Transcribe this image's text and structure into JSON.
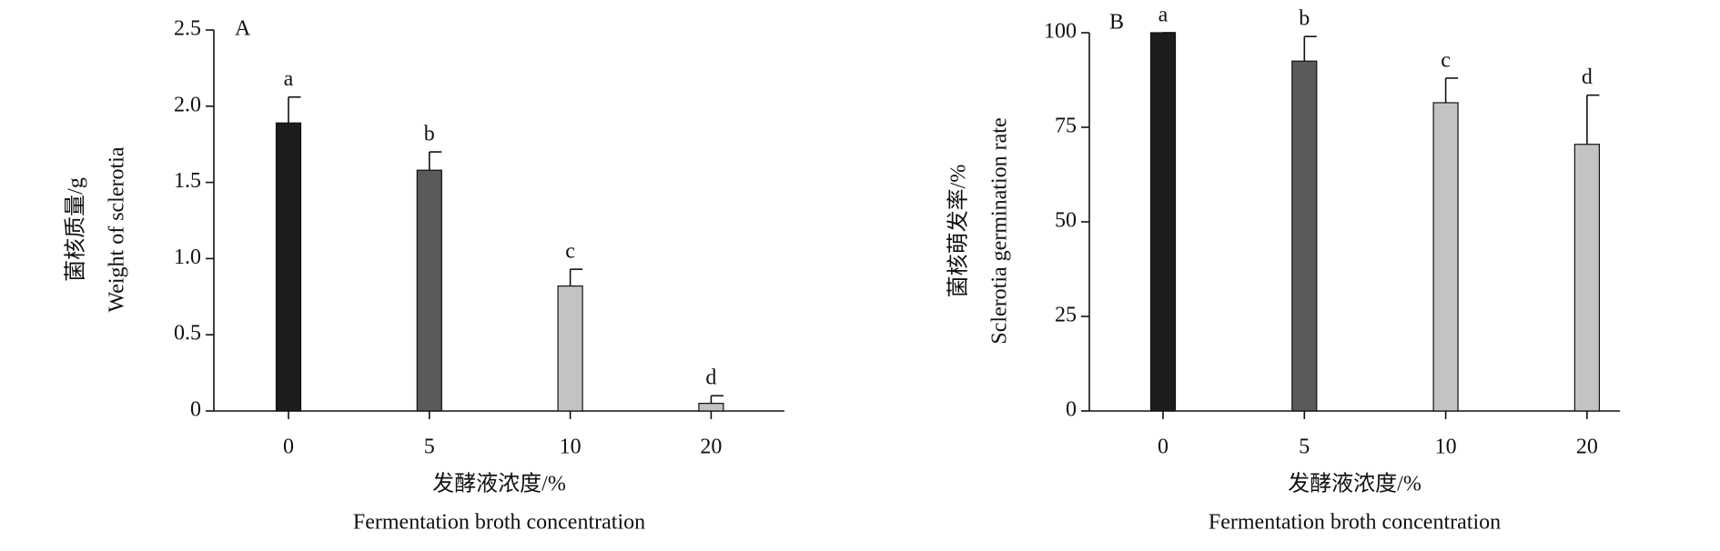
{
  "chart_data": [
    {
      "type": "bar",
      "panel": "A",
      "categories": [
        "0",
        "5",
        "10",
        "20"
      ],
      "values": [
        1.89,
        1.58,
        0.82,
        0.05
      ],
      "errors": [
        0.17,
        0.12,
        0.11,
        0.05
      ],
      "annotations": [
        "a",
        "b",
        "c",
        "d"
      ],
      "colors": [
        "#1c1c1c",
        "#5a5a5a",
        "#c3c3c3",
        "#c3c3c3"
      ],
      "ylim": [
        0,
        2.5
      ],
      "yticks": [
        0,
        0.5,
        {
          "value": 1,
          "label": "1.0"
        },
        1.5,
        {
          "value": 2,
          "label": "2.0"
        },
        2.5
      ],
      "xlabel": [
        "发酵液浓度/%",
        "Fermentation broth concentration"
      ],
      "ylabel": [
        "菌核质量/g",
        "Weight of sclerotia"
      ]
    },
    {
      "type": "bar",
      "panel": "B",
      "categories": [
        "0",
        "5",
        "10",
        "20"
      ],
      "values": [
        100,
        92.5,
        81.5,
        70.5
      ],
      "errors": [
        0,
        6.5,
        6.5,
        13
      ],
      "annotations": [
        "a",
        "b",
        "c",
        "d"
      ],
      "colors": [
        "#1c1c1c",
        "#5a5a5a",
        "#c3c3c3",
        "#c3c3c3"
      ],
      "ylim": [
        0,
        100
      ],
      "yticks": [
        0,
        25,
        50,
        75,
        100
      ],
      "xlabel": [
        "发酵液浓度/%",
        "Fermentation broth concentration"
      ],
      "ylabel": [
        "菌核萌发率/%",
        "Sclerotia germination rate"
      ]
    }
  ]
}
